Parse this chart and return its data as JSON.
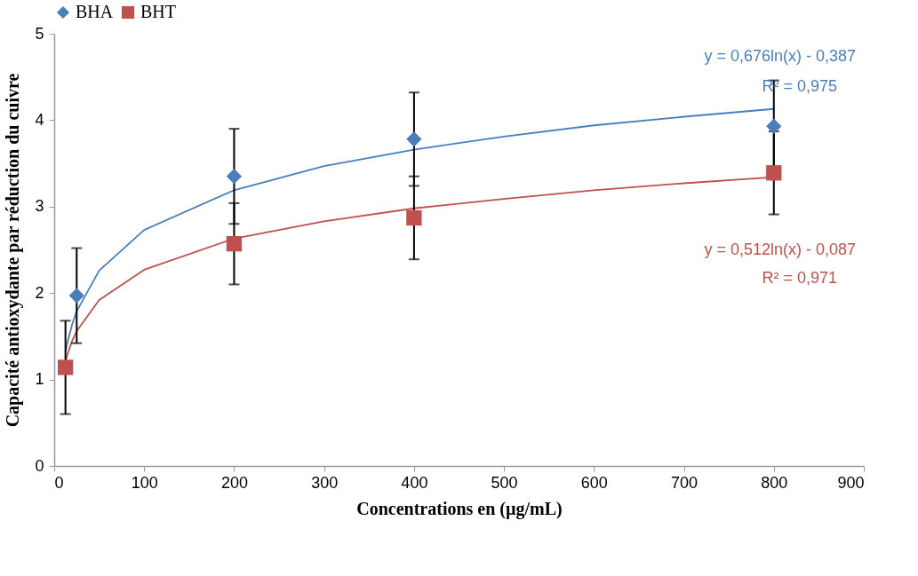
{
  "chart_data": {
    "type": "scatter",
    "xlabel": "Concentrations en (µg/mL)",
    "ylabel": "Capacité antioxydante par réduction du cuivre",
    "xlim": [
      0,
      900
    ],
    "xticks": [
      0,
      100,
      200,
      300,
      400,
      500,
      600,
      700,
      800,
      900
    ],
    "ylim": [
      0,
      5
    ],
    "yticks": [
      0,
      1,
      2,
      3,
      4,
      5
    ],
    "grid": false,
    "legend": "top",
    "series": [
      {
        "name": "BHA",
        "color": "#4a7ebb",
        "marker": "diamond",
        "x": [
          25,
          200,
          400,
          800
        ],
        "values": [
          1.97,
          3.35,
          3.78,
          3.93
        ],
        "errors": [
          0.55,
          0.55,
          0.54,
          0.53
        ]
      },
      {
        "name": "BHT",
        "color": "#c0504d",
        "marker": "square",
        "x": [
          12.5,
          200,
          400,
          800
        ],
        "values": [
          1.14,
          2.57,
          2.87,
          3.39
        ],
        "errors": [
          0.54,
          0.47,
          0.48,
          0.48
        ]
      },
      {
        "type": "line",
        "color": "#4a7ebb",
        "x": [
          12.5,
          15,
          20,
          25,
          50,
          100,
          200,
          300,
          400,
          500,
          600,
          700,
          800
        ],
        "values": [
          1.32,
          1.44,
          1.64,
          1.79,
          2.26,
          2.73,
          3.19,
          3.47,
          3.66,
          3.81,
          3.94,
          4.04,
          4.13
        ]
      },
      {
        "type": "line",
        "color": "#c0504d",
        "x": [
          12.5,
          15,
          20,
          25,
          50,
          100,
          200,
          300,
          400,
          500,
          600,
          700,
          800
        ],
        "values": [
          1.21,
          1.3,
          1.45,
          1.56,
          1.92,
          2.27,
          2.63,
          2.83,
          2.98,
          3.09,
          3.19,
          3.27,
          3.34
        ]
      }
    ],
    "annotations": [
      "y = 0,676ln(x) - 0,387",
      "R² = 0,975",
      "y = 0,512ln(x) - 0,087",
      "R² = 0,971"
    ]
  }
}
